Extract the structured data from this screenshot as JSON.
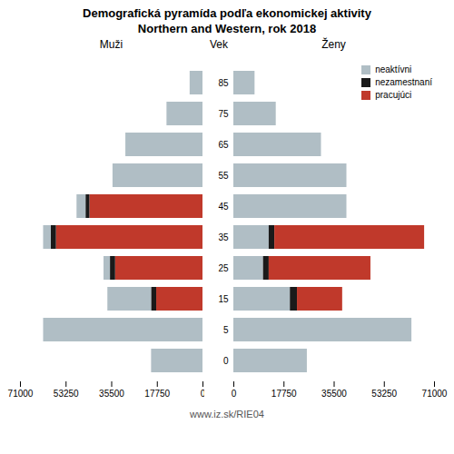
{
  "chart_data": {
    "type": "bar",
    "orientation": "horizontal",
    "stacked": true,
    "title": "Demografická pyramída podľa ekonomickej aktivity",
    "subtitle": "Northern and Western, rok 2018",
    "caption": "www.iz.sk/RIE04",
    "ylabel": "Vek",
    "categories": [
      "0",
      "5",
      "15",
      "25",
      "35",
      "45",
      "55",
      "65",
      "75",
      "85"
    ],
    "panels": [
      {
        "title": "Muži",
        "xlim": [
          71000,
          0
        ],
        "xticks": [
          0,
          17750,
          35500,
          53250,
          71000
        ],
        "series": [
          {
            "name": "pracujúci",
            "color": "#c0392b",
            "values": [
              0,
              0,
              18000,
              34000,
              57000,
              44000,
              0,
              0,
              0,
              0
            ]
          },
          {
            "name": "nezamestnaní",
            "color": "#1a1a1a",
            "values": [
              0,
              0,
              2000,
              2000,
              2000,
              1500,
              0,
              0,
              0,
              0
            ]
          },
          {
            "name": "neaktívni",
            "color": "#b0bec5",
            "values": [
              20000,
              62000,
              17000,
              2500,
              3000,
              3500,
              35000,
              30000,
              14000,
              5000
            ]
          }
        ]
      },
      {
        "title": "Ženy",
        "xlim": [
          0,
          71000
        ],
        "xticks": [
          0,
          17750,
          35500,
          53250,
          71000
        ],
        "legend": "upper right",
        "series": [
          {
            "name": "neaktívni",
            "color": "#b0bec5",
            "values": [
              26000,
              63000,
              20000,
              10500,
              12500,
              40000,
              40000,
              31000,
              15000,
              7500
            ]
          },
          {
            "name": "nezamestnaní",
            "color": "#1a1a1a",
            "values": [
              0,
              0,
              2500,
              2000,
              2000,
              0,
              0,
              0,
              0,
              0
            ]
          },
          {
            "name": "pracujúci",
            "color": "#c0392b",
            "values": [
              0,
              0,
              16000,
              36000,
              53000,
              0,
              0,
              0,
              0,
              0
            ]
          }
        ]
      }
    ]
  }
}
